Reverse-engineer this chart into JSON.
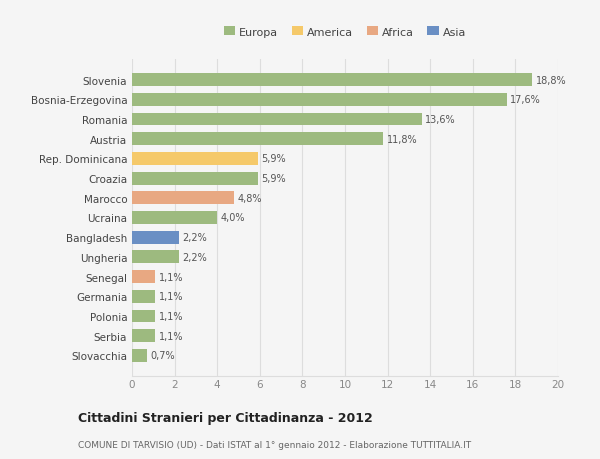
{
  "categories": [
    "Slovenia",
    "Bosnia-Erzegovina",
    "Romania",
    "Austria",
    "Rep. Dominicana",
    "Croazia",
    "Marocco",
    "Ucraina",
    "Bangladesh",
    "Ungheria",
    "Senegal",
    "Germania",
    "Polonia",
    "Serbia",
    "Slovacchia"
  ],
  "values": [
    18.8,
    17.6,
    13.6,
    11.8,
    5.9,
    5.9,
    4.8,
    4.0,
    2.2,
    2.2,
    1.1,
    1.1,
    1.1,
    1.1,
    0.7
  ],
  "labels": [
    "18,8%",
    "17,6%",
    "13,6%",
    "11,8%",
    "5,9%",
    "5,9%",
    "4,8%",
    "4,0%",
    "2,2%",
    "2,2%",
    "1,1%",
    "1,1%",
    "1,1%",
    "1,1%",
    "0,7%"
  ],
  "colors": [
    "#9dba7f",
    "#9dba7f",
    "#9dba7f",
    "#9dba7f",
    "#f5c96a",
    "#9dba7f",
    "#e8a882",
    "#9dba7f",
    "#6a8fc4",
    "#9dba7f",
    "#e8a882",
    "#9dba7f",
    "#9dba7f",
    "#9dba7f",
    "#9dba7f"
  ],
  "legend_labels": [
    "Europa",
    "America",
    "Africa",
    "Asia"
  ],
  "legend_colors": [
    "#9dba7f",
    "#f5c96a",
    "#e8a882",
    "#6a8fc4"
  ],
  "title": "Cittadini Stranieri per Cittadinanza - 2012",
  "subtitle": "COMUNE DI TARVISIO (UD) - Dati ISTAT al 1° gennaio 2012 - Elaborazione TUTTITALIA.IT",
  "xlim": [
    0,
    20
  ],
  "xticks": [
    0,
    2,
    4,
    6,
    8,
    10,
    12,
    14,
    16,
    18,
    20
  ],
  "background_color": "#f5f5f5",
  "grid_color": "#dddddd"
}
